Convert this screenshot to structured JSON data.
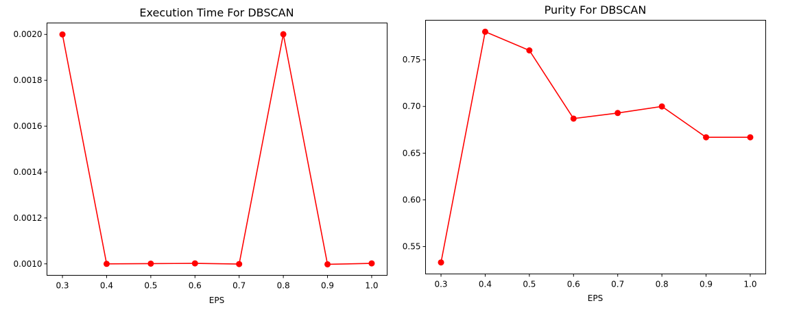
{
  "chart_data": [
    {
      "type": "line",
      "title": "Execution Time For DBSCAN",
      "xlabel": "EPS",
      "ylabel": "",
      "x": [
        0.3,
        0.4,
        0.5,
        0.6,
        0.7,
        0.8,
        0.9,
        1.0
      ],
      "series": [
        {
          "values": [
            0.002,
            0.001,
            0.001001,
            0.001002,
            0.000999,
            0.002001,
            0.000998,
            0.001002
          ],
          "color": "#ff0000",
          "marker": "circle"
        }
      ],
      "xticks": [
        0.3,
        0.4,
        0.5,
        0.6,
        0.7,
        0.8,
        0.9,
        1.0
      ],
      "xtick_labels": [
        "0.3",
        "0.4",
        "0.5",
        "0.6",
        "0.7",
        "0.8",
        "0.9",
        "1.0"
      ],
      "yticks": [
        0.001,
        0.0012,
        0.0014,
        0.0016,
        0.0018,
        0.002
      ],
      "ytick_labels": [
        "0.0010",
        "0.0012",
        "0.0014",
        "0.0016",
        "0.0018",
        "0.0020"
      ],
      "xlim": [
        0.265,
        1.035
      ],
      "ylim": [
        0.00095,
        0.00205
      ],
      "grid": false
    },
    {
      "type": "line",
      "title": "Purity For DBSCAN",
      "xlabel": "EPS",
      "ylabel": "",
      "x": [
        0.3,
        0.4,
        0.5,
        0.6,
        0.7,
        0.8,
        0.9,
        1.0
      ],
      "series": [
        {
          "values": [
            0.533,
            0.78,
            0.76,
            0.687,
            0.693,
            0.7,
            0.667,
            0.667
          ],
          "color": "#ff0000",
          "marker": "circle"
        }
      ],
      "xticks": [
        0.3,
        0.4,
        0.5,
        0.6,
        0.7,
        0.8,
        0.9,
        1.0
      ],
      "xtick_labels": [
        "0.3",
        "0.4",
        "0.5",
        "0.6",
        "0.7",
        "0.8",
        "0.9",
        "1.0"
      ],
      "yticks": [
        0.55,
        0.6,
        0.65,
        0.7,
        0.75
      ],
      "ytick_labels": [
        "0.55",
        "0.60",
        "0.65",
        "0.70",
        "0.75"
      ],
      "xlim": [
        0.265,
        1.035
      ],
      "ylim": [
        0.5207,
        0.7923
      ],
      "grid": false
    }
  ]
}
